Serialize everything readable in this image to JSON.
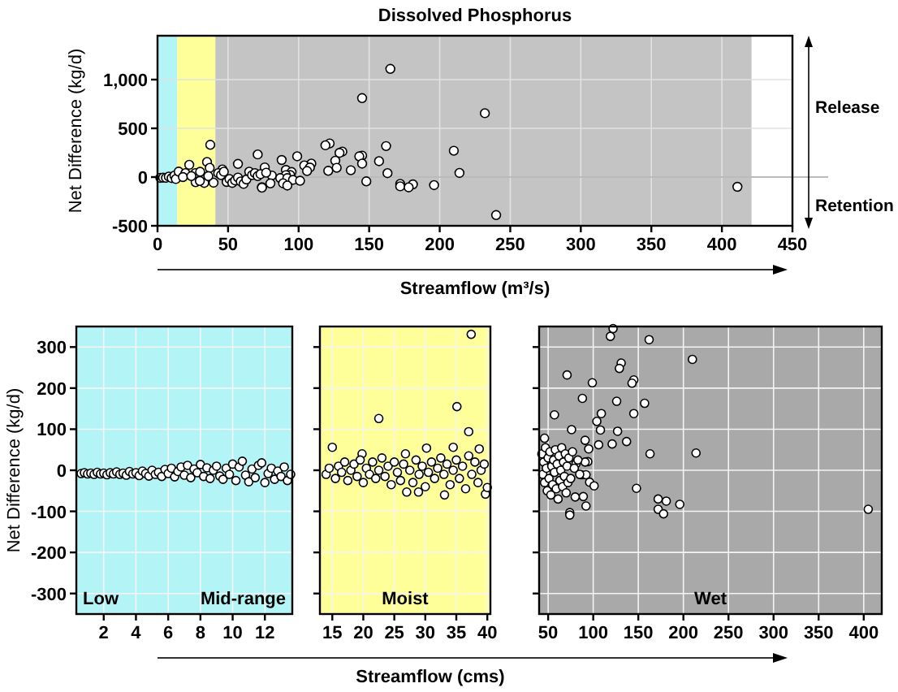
{
  "chart_data": [
    {
      "type": "scatter",
      "title": "Dissolved Phosphorus",
      "xlabel": "Streamflow (m³/s)",
      "ylabel": "Net Difference (kg/d)",
      "xlim": [
        0,
        450
      ],
      "ylim": [
        -500,
        1450
      ],
      "xticks": [
        0,
        50,
        100,
        150,
        200,
        250,
        300,
        350,
        400,
        450
      ],
      "yticks": [
        -500,
        0,
        500,
        {
          "value": 1000,
          "label": "1,000"
        }
      ],
      "grid": true,
      "marker": "circle",
      "annotations": [
        "Release",
        "Retention"
      ],
      "ref_lines": [
        {
          "axis": "y",
          "value": 0,
          "color": "#bbbbbb"
        }
      ],
      "bands": [
        {
          "axis": "x",
          "from": 0,
          "to": 14,
          "color": "#b3f5f7"
        },
        {
          "axis": "x",
          "from": 14,
          "to": 41,
          "color": "#ffff99"
        },
        {
          "axis": "x",
          "from": 41,
          "to": 421,
          "color": "#c4c4c4"
        }
      ],
      "series": [
        {
          "color": "#ffffff",
          "x": [
            2,
            4,
            6,
            8,
            10,
            12,
            13,
            15,
            19.8,
            22.5,
            26.8,
            30.2,
            35.1,
            37,
            37.4,
            27,
            33.1,
            39.7,
            18,
            24,
            30,
            36,
            122,
            119,
            162,
            210,
            71,
            131,
            129,
            145,
            143,
            99,
            88,
            126,
            157,
            57,
            109,
            104,
            145,
            76,
            108,
            127,
            137,
            121,
            106,
            91,
            95,
            163,
            214,
            46,
            94,
            91,
            81,
            87,
            92,
            96,
            101,
            148,
            89,
            92,
            74,
            74,
            172,
            181,
            172,
            178,
            196,
            411,
            145,
            165,
            232,
            240,
            43,
            45,
            47,
            49,
            51,
            53,
            55,
            57,
            59,
            61,
            63,
            65,
            67,
            69,
            71,
            73,
            77,
            80
          ],
          "values": [
            -8,
            -6,
            -8,
            5,
            -10,
            15,
            -20,
            56,
            40,
            126,
            40,
            54,
            155,
            94,
            331,
            -53,
            -60,
            -58,
            0,
            10,
            -40,
            10,
            345,
            326,
            318,
            270,
            232,
            261,
            248,
            220,
            212,
            213,
            175,
            168,
            163,
            135,
            138,
            119,
            138,
            99,
            98,
            95,
            70,
            64,
            62,
            73,
            52,
            40,
            42,
            78,
            21,
            20,
            16,
            -11,
            -11,
            -29,
            -38,
            -44,
            -64,
            -87,
            -103,
            -109,
            -70,
            -75,
            -95,
            -106,
            -83,
            -100,
            810,
            1110,
            655,
            -390,
            40,
            20,
            55,
            -50,
            -20,
            -60,
            -35,
            -5,
            -45,
            -70,
            -25,
            55,
            20,
            40,
            10,
            30,
            45,
            -65
          ]
        }
      ]
    },
    {
      "type": "scatter",
      "ylabel": "Net Difference (kg/d)",
      "xlim": [
        0.3,
        13.7
      ],
      "ylim": [
        -350,
        350
      ],
      "xticks": [
        2,
        4,
        6,
        8,
        10,
        12
      ],
      "yticks": [
        -300,
        -200,
        -100,
        0,
        100,
        200,
        300
      ],
      "grid": true,
      "marker": "circle",
      "bands": [
        {
          "axis": "x",
          "from": 0.3,
          "to": 7,
          "label": "Low",
          "color": "#b3f5f7"
        },
        {
          "axis": "x",
          "from": 7,
          "to": 13.7,
          "label": "Mid-range",
          "color": "#b3f5f7"
        }
      ],
      "series": [
        {
          "color": "#ffffff",
          "x": [
            0.6,
            0.8,
            1,
            1.2,
            1.4,
            1.6,
            1.8,
            2,
            2.2,
            2.4,
            2.6,
            2.8,
            3,
            3.2,
            3.4,
            3.6,
            3.8,
            4,
            4.2,
            4.4,
            4.6,
            4.8,
            5,
            5.2,
            5.4,
            5.6,
            5.8,
            6,
            6.2,
            6.4,
            6.6,
            6.8,
            7,
            7.2,
            7.4,
            7.6,
            7.8,
            8,
            8.2,
            8.4,
            8.6,
            8.8,
            9,
            9.2,
            9.4,
            9.6,
            9.8,
            10,
            10.2,
            10.4,
            10.6,
            10.8,
            11,
            11.2,
            11.4,
            11.6,
            11.8,
            12,
            12.2,
            12.4,
            12.6,
            12.8,
            13,
            13.2,
            13.4,
            13.6
          ],
          "values": [
            -8,
            -6,
            -9,
            -7,
            -10,
            -5,
            -9,
            -7,
            -11,
            -6,
            -9,
            -4,
            -10,
            -7,
            -12,
            -3,
            -9,
            -6,
            -13,
            -2,
            -8,
            -14,
            0,
            -10,
            -5,
            -15,
            2,
            -8,
            5,
            -16,
            -3,
            8,
            -12,
            12,
            -18,
            3,
            -6,
            14,
            -15,
            6,
            -20,
            0,
            10,
            -14,
            -22,
            5,
            -10,
            15,
            -25,
            8,
            22,
            -12,
            -28,
            3,
            -18,
            12,
            18,
            -30,
            -8,
            5,
            -22,
            -2,
            -15,
            8,
            -25,
            -10
          ]
        }
      ]
    },
    {
      "type": "scatter",
      "xlabel": "Streamflow (cms)",
      "xlim": [
        13,
        40.5
      ],
      "ylim": [
        -350,
        350
      ],
      "xticks": [
        15,
        20,
        25,
        30,
        35,
        40
      ],
      "yticks": [
        -300,
        -200,
        -100,
        0,
        100,
        200,
        300
      ],
      "grid": true,
      "marker": "circle",
      "tick_labels": "x",
      "bands": [
        {
          "axis": "x",
          "from": 13,
          "to": 40.5,
          "label": "Moist",
          "color": "#ffff99"
        }
      ],
      "series": [
        {
          "color": "#ffffff",
          "x": [
            15,
            19.8,
            22.5,
            26.8,
            30.2,
            34.5,
            35.1,
            37,
            37.4,
            38.7,
            27,
            28.9,
            33.1,
            39.7,
            40,
            14,
            14.5,
            15.5,
            16,
            16.5,
            17,
            17.5,
            18,
            18.5,
            19,
            19.5,
            20,
            20.5,
            21,
            21.5,
            22,
            22.5,
            23,
            23.5,
            24,
            24.5,
            25,
            25.5,
            26,
            26.5,
            27.5,
            28,
            28.5,
            29,
            29.5,
            30,
            30.5,
            31,
            31.5,
            32,
            32.5,
            33,
            33.5,
            34,
            34.5,
            35,
            35.5,
            36,
            36.5,
            37,
            37.5,
            38,
            38.5,
            39,
            39.5
          ],
          "values": [
            56,
            40,
            126,
            40,
            54,
            56,
            155,
            94,
            331,
            52,
            -53,
            -53,
            -60,
            -58,
            -42,
            -10,
            5,
            -20,
            10,
            -5,
            20,
            -25,
            0,
            15,
            -15,
            25,
            -30,
            5,
            -10,
            20,
            -20,
            0,
            30,
            -15,
            10,
            -35,
            20,
            -5,
            -25,
            15,
            0,
            -30,
            25,
            -10,
            10,
            -40,
            -5,
            20,
            -20,
            5,
            30,
            -10,
            15,
            -35,
            0,
            25,
            -20,
            10,
            -45,
            35,
            -10,
            20,
            -30,
            0,
            15
          ]
        }
      ]
    },
    {
      "type": "scatter",
      "xlim": [
        40,
        420
      ],
      "ylim": [
        -350,
        350
      ],
      "xticks": [
        50,
        100,
        150,
        200,
        250,
        300,
        350,
        400
      ],
      "yticks": [
        -300,
        -200,
        -100,
        0,
        100,
        200,
        300
      ],
      "grid": true,
      "marker": "circle",
      "tick_labels": "x",
      "bands": [
        {
          "axis": "x",
          "from": 40,
          "to": 420,
          "label": "Wet",
          "color": "#a9a9a9"
        }
      ],
      "series": [
        {
          "color": "#ffffff",
          "x": [
            122,
            119,
            162,
            210,
            71,
            131,
            129,
            145,
            143,
            99,
            88,
            126,
            157,
            57,
            109,
            104,
            145,
            76,
            108,
            127,
            137,
            121,
            106,
            91,
            95,
            163,
            214,
            46,
            94,
            91,
            81,
            87,
            92,
            96,
            101,
            148,
            89,
            92,
            74,
            74,
            172,
            181,
            172,
            178,
            196,
            405,
            43,
            44,
            45,
            46,
            47,
            48,
            49,
            50,
            51,
            52,
            53,
            54,
            55,
            56,
            57,
            58,
            59,
            60,
            61,
            62,
            63,
            64,
            65,
            66,
            67,
            68,
            69,
            70,
            71,
            72,
            73,
            75,
            77,
            79,
            80,
            83,
            85
          ],
          "values": [
            345,
            326,
            318,
            270,
            232,
            261,
            248,
            220,
            212,
            213,
            175,
            168,
            163,
            135,
            138,
            119,
            138,
            99,
            98,
            95,
            70,
            64,
            62,
            73,
            52,
            40,
            42,
            78,
            21,
            20,
            16,
            -11,
            -11,
            -29,
            -38,
            -44,
            -64,
            -87,
            -103,
            -109,
            -70,
            -75,
            -95,
            -106,
            -83,
            -95,
            40,
            -10,
            20,
            -30,
            55,
            5,
            -50,
            30,
            -20,
            45,
            -60,
            10,
            -35,
            25,
            -5,
            50,
            -45,
            15,
            -70,
            35,
            -25,
            0,
            55,
            -40,
            20,
            -15,
            40,
            -55,
            10,
            -30,
            30,
            -20,
            45,
            5,
            -65,
            25,
            -10
          ]
        }
      ]
    }
  ]
}
